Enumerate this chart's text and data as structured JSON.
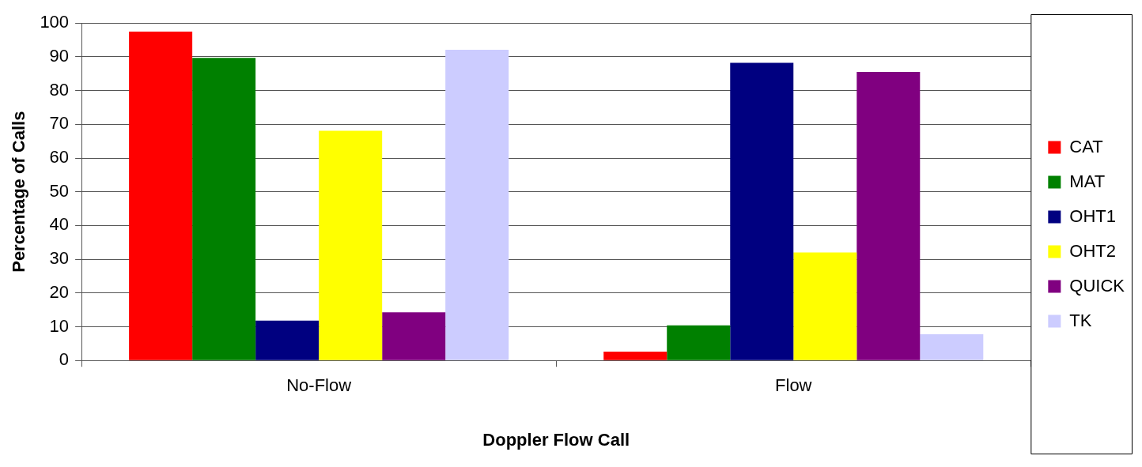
{
  "chart_data": {
    "type": "bar",
    "xlabel": "Doppler Flow Call",
    "ylabel": "Percentage of Calls",
    "categories": [
      "No-Flow",
      "Flow"
    ],
    "series": [
      {
        "name": "CAT",
        "color": "#ff0000",
        "values": [
          97.5,
          2.6
        ]
      },
      {
        "name": "MAT",
        "color": "#008000",
        "values": [
          89.7,
          10.4
        ]
      },
      {
        "name": "OHT1",
        "color": "#000080",
        "values": [
          11.8,
          88.2
        ]
      },
      {
        "name": "OHT2",
        "color": "#ffff00",
        "values": [
          68.1,
          32.0
        ]
      },
      {
        "name": "QUICK",
        "color": "#800080",
        "values": [
          14.3,
          85.5
        ]
      },
      {
        "name": "TK",
        "color": "#ccccff",
        "values": [
          92.1,
          7.8
        ]
      }
    ],
    "ylim": [
      0,
      100
    ],
    "yticks": [
      0,
      10,
      20,
      30,
      40,
      50,
      60,
      70,
      80,
      90,
      100
    ],
    "grid": "y",
    "legend": "right"
  }
}
